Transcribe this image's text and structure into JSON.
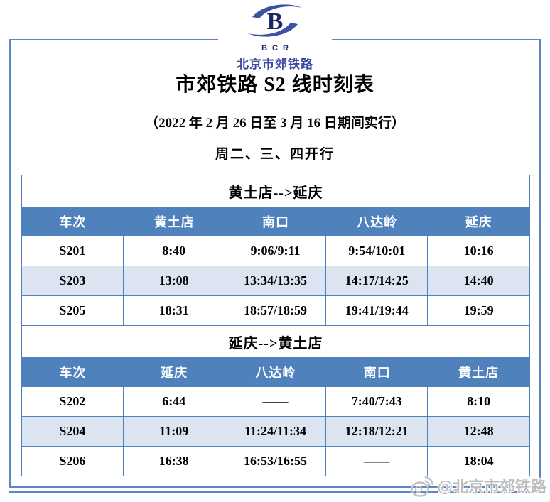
{
  "logo": {
    "acronym": "BCR",
    "name": "北京市郊铁路",
    "icon": "bcr-railway-s-logo"
  },
  "title": "市郊铁路 S2 线时刻表",
  "subtitle": "（2022 年 2 月 26 日至 3 月 16 日期间实行）",
  "schedule_note": "周二、三、四开行",
  "tables": [
    {
      "direction": "黄土店-->延庆",
      "headers": [
        "车次",
        "黄土店",
        "南口",
        "八达岭",
        "延庆"
      ],
      "rows": [
        [
          "S201",
          "8:40",
          "9:06/9:11",
          "9:54/10:01",
          "10:16"
        ],
        [
          "S203",
          "13:08",
          "13:34/13:35",
          "14:17/14:25",
          "14:40"
        ],
        [
          "S205",
          "18:31",
          "18:57/18:59",
          "19:41/19:44",
          "19:59"
        ]
      ]
    },
    {
      "direction": "延庆-->黄土店",
      "headers": [
        "车次",
        "延庆",
        "八达岭",
        "南口",
        "黄土店"
      ],
      "rows": [
        [
          "S202",
          "6:44",
          "——",
          "7:40/7:43",
          "8:10"
        ],
        [
          "S204",
          "11:09",
          "11:24/11:34",
          "12:18/12:21",
          "12:48"
        ],
        [
          "S206",
          "16:38",
          "16:53/16:55",
          "——",
          "18:04"
        ]
      ]
    }
  ],
  "watermark": {
    "handle": "@北京市郊铁路",
    "icon": "weibo-eye-icon"
  },
  "colors": {
    "header_blue": "#4F81BD",
    "row_alt_blue": "#DCE4F2",
    "table_border": "#4F81BD",
    "frame_border": "#5C87C0",
    "logo_navy": "#1B2668",
    "logo_blue": "#3D52A5",
    "watermark_grey": "#BDBDBD"
  }
}
